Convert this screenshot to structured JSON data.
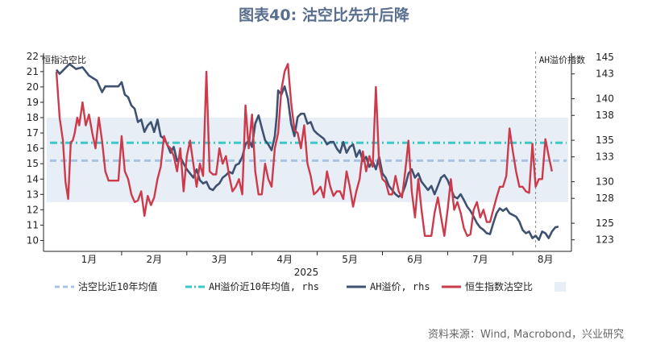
{
  "title": "图表40: 沽空比先升后降",
  "source": "资料来源：Wind, Macrobond，兴业研究",
  "chart_data": {
    "type": "line",
    "year_label": "2025",
    "months": [
      "1月",
      "2月",
      "3月",
      "4月",
      "5月",
      "6月",
      "7月",
      "8月"
    ],
    "left_axis": {
      "label": "恒指沽空比",
      "ticks": [
        10,
        11,
        12,
        13,
        14,
        15,
        16,
        17,
        18,
        19,
        20,
        21,
        22
      ],
      "range": [
        9.5,
        22.2
      ]
    },
    "right_axis": {
      "label": "AH溢价指数",
      "ticks": [
        123,
        125,
        128,
        130,
        133,
        135,
        138,
        140,
        143,
        145
      ],
      "range": [
        122,
        145.5
      ]
    },
    "band": {
      "low": 12.5,
      "high": 18.0,
      "color": "#e8eef6"
    },
    "ref_short_ratio_10y_avg": {
      "name": "沽空比近10年均值",
      "value": 15.2,
      "color": "#a9c4e3"
    },
    "ref_ah_10y_avg": {
      "name": "AH溢价近10年均值, rhs",
      "value": 134.7,
      "color": "#3cc8c8"
    },
    "series": [
      {
        "name": "AH溢价, rhs",
        "axis": "right",
        "color": "#3e5170",
        "points": [
          [
            0,
            143.5
          ],
          [
            0.05,
            143.0
          ],
          [
            0.15,
            143.8
          ],
          [
            0.2,
            144.2
          ],
          [
            0.3,
            143.6
          ],
          [
            0.4,
            143.8
          ],
          [
            0.5,
            142.8
          ],
          [
            0.62,
            142.2
          ],
          [
            0.7,
            140.8
          ],
          [
            0.75,
            141.5
          ],
          [
            0.85,
            141.5
          ],
          [
            0.95,
            141.5
          ],
          [
            1.0,
            142.0
          ],
          [
            1.05,
            140.5
          ],
          [
            1.1,
            140.2
          ],
          [
            1.15,
            139.2
          ],
          [
            1.2,
            138.8
          ],
          [
            1.25,
            137.2
          ],
          [
            1.3,
            137.5
          ],
          [
            1.35,
            136.0
          ],
          [
            1.4,
            136.8
          ],
          [
            1.45,
            137.2
          ],
          [
            1.5,
            136.0
          ],
          [
            1.55,
            137.5
          ],
          [
            1.6,
            135.5
          ],
          [
            1.65,
            135.2
          ],
          [
            1.7,
            134.5
          ],
          [
            1.75,
            133.5
          ],
          [
            1.8,
            134.2
          ],
          [
            1.85,
            132.5
          ],
          [
            1.9,
            133.0
          ],
          [
            1.95,
            132.2
          ],
          [
            2.0,
            131.5
          ],
          [
            2.05,
            131.0
          ],
          [
            2.1,
            130.5
          ],
          [
            2.15,
            131.5
          ],
          [
            2.2,
            130.2
          ],
          [
            2.25,
            129.8
          ],
          [
            2.3,
            130.0
          ],
          [
            2.35,
            129.2
          ],
          [
            2.4,
            129.0
          ],
          [
            2.45,
            129.5
          ],
          [
            2.5,
            129.8
          ],
          [
            2.55,
            130.5
          ],
          [
            2.6,
            130.8
          ],
          [
            2.65,
            131.2
          ],
          [
            2.7,
            131.0
          ],
          [
            2.75,
            132.0
          ],
          [
            2.8,
            132.2
          ],
          [
            2.85,
            133.0
          ],
          [
            2.9,
            134.5
          ],
          [
            2.95,
            135.0
          ],
          [
            3.0,
            134.2
          ],
          [
            3.05,
            137.0
          ],
          [
            3.1,
            138.0
          ],
          [
            3.15,
            136.5
          ],
          [
            3.2,
            135.0
          ],
          [
            3.25,
            134.5
          ],
          [
            3.3,
            133.8
          ],
          [
            3.35,
            135.5
          ],
          [
            3.38,
            138.0
          ],
          [
            3.4,
            141.0
          ],
          [
            3.45,
            140.5
          ],
          [
            3.5,
            141.5
          ],
          [
            3.55,
            140.0
          ],
          [
            3.6,
            137.0
          ],
          [
            3.65,
            135.5
          ],
          [
            3.7,
            137.8
          ],
          [
            3.75,
            138.2
          ],
          [
            3.8,
            138.2
          ],
          [
            3.85,
            137.0
          ],
          [
            3.9,
            137.2
          ],
          [
            3.95,
            136.2
          ],
          [
            4.0,
            135.8
          ],
          [
            4.05,
            135.5
          ],
          [
            4.1,
            135.2
          ],
          [
            4.15,
            134.5
          ],
          [
            4.2,
            134.8
          ],
          [
            4.25,
            134.8
          ],
          [
            4.3,
            134.0
          ],
          [
            4.35,
            133.5
          ],
          [
            4.4,
            134.8
          ],
          [
            4.45,
            133.5
          ],
          [
            4.5,
            134.2
          ],
          [
            4.55,
            134.5
          ],
          [
            4.6,
            133.0
          ],
          [
            4.65,
            133.8
          ],
          [
            4.7,
            132.5
          ],
          [
            4.75,
            133.0
          ],
          [
            4.8,
            131.8
          ],
          [
            4.85,
            132.5
          ],
          [
            4.9,
            131.5
          ],
          [
            4.95,
            133.0
          ],
          [
            5.0,
            131.0
          ],
          [
            5.05,
            130.5
          ],
          [
            5.1,
            129.5
          ],
          [
            5.15,
            129.0
          ],
          [
            5.2,
            128.5
          ],
          [
            5.25,
            128.2
          ],
          [
            5.3,
            128.5
          ],
          [
            5.35,
            129.5
          ],
          [
            5.4,
            131.0
          ],
          [
            5.45,
            131.5
          ],
          [
            5.5,
            130.5
          ],
          [
            5.55,
            131.0
          ],
          [
            5.6,
            130.0
          ],
          [
            5.65,
            129.5
          ],
          [
            5.7,
            129.0
          ],
          [
            5.75,
            129.5
          ],
          [
            5.8,
            128.5
          ],
          [
            5.85,
            129.5
          ],
          [
            5.9,
            130.5
          ],
          [
            5.95,
            130.8
          ],
          [
            6.0,
            130.2
          ],
          [
            6.05,
            129.2
          ],
          [
            6.1,
            128.2
          ],
          [
            6.15,
            128.0
          ],
          [
            6.2,
            128.5
          ],
          [
            6.25,
            127.8
          ],
          [
            6.3,
            127.0
          ],
          [
            6.35,
            126.5
          ],
          [
            6.4,
            125.8
          ],
          [
            6.45,
            125.0
          ],
          [
            6.5,
            124.5
          ],
          [
            6.55,
            124.2
          ],
          [
            6.6,
            123.8
          ],
          [
            6.65,
            123.7
          ],
          [
            6.7,
            125.0
          ],
          [
            6.75,
            126.2
          ],
          [
            6.8,
            126.8
          ],
          [
            6.85,
            126.5
          ],
          [
            6.9,
            126.8
          ],
          [
            6.95,
            126.2
          ],
          [
            7.0,
            126.0
          ],
          [
            7.05,
            125.8
          ],
          [
            7.1,
            125.2
          ],
          [
            7.15,
            124.2
          ],
          [
            7.2,
            123.8
          ],
          [
            7.25,
            124.0
          ],
          [
            7.3,
            123.2
          ],
          [
            7.35,
            123.5
          ],
          [
            7.4,
            123.0
          ],
          [
            7.45,
            124.0
          ],
          [
            7.5,
            123.8
          ],
          [
            7.55,
            123.2
          ],
          [
            7.6,
            124.0
          ],
          [
            7.65,
            124.5
          ],
          [
            7.7,
            124.6
          ]
        ]
      },
      {
        "name": "恒生指数沽空比",
        "axis": "left",
        "color": "#cc3a4b",
        "points": [
          [
            0,
            21.0
          ],
          [
            0.05,
            18.0
          ],
          [
            0.1,
            16.5
          ],
          [
            0.14,
            13.8
          ],
          [
            0.18,
            12.7
          ],
          [
            0.22,
            16.4
          ],
          [
            0.25,
            16.5
          ],
          [
            0.28,
            17.0
          ],
          [
            0.32,
            18.0
          ],
          [
            0.35,
            17.5
          ],
          [
            0.4,
            19.0
          ],
          [
            0.45,
            17.5
          ],
          [
            0.5,
            18.2
          ],
          [
            0.55,
            17.0
          ],
          [
            0.6,
            16.0
          ],
          [
            0.65,
            18.0
          ],
          [
            0.7,
            16.5
          ],
          [
            0.75,
            14.5
          ],
          [
            0.8,
            13.9
          ],
          [
            0.85,
            13.9
          ],
          [
            0.9,
            13.9
          ],
          [
            0.95,
            13.9
          ],
          [
            1.0,
            16.8
          ],
          [
            1.05,
            14.5
          ],
          [
            1.1,
            14.0
          ],
          [
            1.15,
            13.0
          ],
          [
            1.2,
            12.5
          ],
          [
            1.25,
            12.6
          ],
          [
            1.3,
            13.2
          ],
          [
            1.35,
            11.6
          ],
          [
            1.4,
            12.9
          ],
          [
            1.45,
            12.3
          ],
          [
            1.5,
            12.8
          ],
          [
            1.55,
            14.0
          ],
          [
            1.6,
            14.8
          ],
          [
            1.65,
            16.8
          ],
          [
            1.7,
            16.2
          ],
          [
            1.75,
            16.0
          ],
          [
            1.8,
            15.5
          ],
          [
            1.85,
            14.5
          ],
          [
            1.9,
            16.0
          ],
          [
            1.95,
            13.2
          ],
          [
            2.0,
            15.5
          ],
          [
            2.05,
            16.5
          ],
          [
            2.1,
            15.0
          ],
          [
            2.15,
            13.5
          ],
          [
            2.2,
            15.0
          ],
          [
            2.25,
            14.2
          ],
          [
            2.3,
            21.0
          ],
          [
            2.35,
            14.5
          ],
          [
            2.4,
            14.3
          ],
          [
            2.45,
            14.3
          ],
          [
            2.5,
            16.0
          ],
          [
            2.55,
            15.0
          ],
          [
            2.6,
            15.5
          ],
          [
            2.65,
            14.2
          ],
          [
            2.7,
            13.2
          ],
          [
            2.75,
            13.5
          ],
          [
            2.8,
            14.0
          ],
          [
            2.85,
            13.0
          ],
          [
            2.9,
            18.8
          ],
          [
            2.95,
            16.0
          ],
          [
            3.0,
            18.2
          ],
          [
            3.05,
            14.5
          ],
          [
            3.1,
            13.0
          ],
          [
            3.15,
            13.0
          ],
          [
            3.2,
            15.0
          ],
          [
            3.25,
            14.0
          ],
          [
            3.3,
            13.5
          ],
          [
            3.35,
            16.0
          ],
          [
            3.4,
            17.0
          ],
          [
            3.45,
            19.8
          ],
          [
            3.5,
            21.0
          ],
          [
            3.55,
            21.5
          ],
          [
            3.6,
            19.0
          ],
          [
            3.65,
            17.2
          ],
          [
            3.7,
            17.0
          ],
          [
            3.75,
            16.0
          ],
          [
            3.8,
            17.5
          ],
          [
            3.85,
            15.0
          ],
          [
            3.9,
            14.2
          ],
          [
            3.95,
            13.0
          ],
          [
            4.0,
            13.2
          ],
          [
            4.05,
            13.5
          ],
          [
            4.1,
            12.8
          ],
          [
            4.15,
            14.5
          ],
          [
            4.2,
            13.5
          ],
          [
            4.25,
            12.9
          ],
          [
            4.3,
            13.2
          ],
          [
            4.35,
            13.2
          ],
          [
            4.4,
            12.7
          ],
          [
            4.45,
            14.5
          ],
          [
            4.5,
            13.5
          ],
          [
            4.55,
            12.2
          ],
          [
            4.6,
            13.2
          ],
          [
            4.65,
            14.0
          ],
          [
            4.7,
            15.8
          ],
          [
            4.75,
            14.5
          ],
          [
            4.8,
            15.5
          ],
          [
            4.85,
            14.8
          ],
          [
            4.9,
            20.0
          ],
          [
            4.95,
            15.0
          ],
          [
            5.0,
            14.0
          ],
          [
            5.05,
            13.8
          ],
          [
            5.1,
            13.0
          ],
          [
            5.15,
            13.0
          ],
          [
            5.2,
            14.2
          ],
          [
            5.25,
            13.2
          ],
          [
            5.3,
            12.8
          ],
          [
            5.35,
            14.5
          ],
          [
            5.4,
            16.5
          ],
          [
            5.45,
            13.2
          ],
          [
            5.5,
            11.5
          ],
          [
            5.55,
            14.0
          ],
          [
            5.6,
            12.0
          ],
          [
            5.65,
            10.3
          ],
          [
            5.7,
            10.3
          ],
          [
            5.75,
            10.3
          ],
          [
            5.8,
            11.8
          ],
          [
            5.85,
            12.8
          ],
          [
            5.9,
            11.5
          ],
          [
            5.95,
            10.3
          ],
          [
            6.0,
            12.0
          ],
          [
            6.05,
            14.0
          ],
          [
            6.1,
            12.0
          ],
          [
            6.15,
            12.5
          ],
          [
            6.2,
            11.8
          ],
          [
            6.25,
            10.8
          ],
          [
            6.3,
            10.3
          ],
          [
            6.35,
            10.4
          ],
          [
            6.4,
            12.0
          ],
          [
            6.45,
            12.5
          ],
          [
            6.5,
            11.5
          ],
          [
            6.55,
            12.0
          ],
          [
            6.6,
            11.2
          ],
          [
            6.65,
            11.2
          ],
          [
            6.7,
            12.0
          ],
          [
            6.75,
            12.8
          ],
          [
            6.8,
            13.5
          ],
          [
            6.85,
            13.5
          ],
          [
            6.9,
            14.2
          ],
          [
            6.95,
            17.3
          ],
          [
            7.0,
            15.8
          ],
          [
            7.05,
            14.5
          ],
          [
            7.1,
            13.5
          ],
          [
            7.15,
            13.5
          ],
          [
            7.2,
            13.2
          ],
          [
            7.25,
            13.1
          ],
          [
            7.3,
            16.3
          ],
          [
            7.35,
            13.5
          ],
          [
            7.4,
            14.0
          ],
          [
            7.45,
            14.0
          ],
          [
            7.5,
            16.6
          ],
          [
            7.55,
            15.5
          ],
          [
            7.6,
            14.5
          ]
        ]
      }
    ],
    "vline_x": 7.35
  }
}
